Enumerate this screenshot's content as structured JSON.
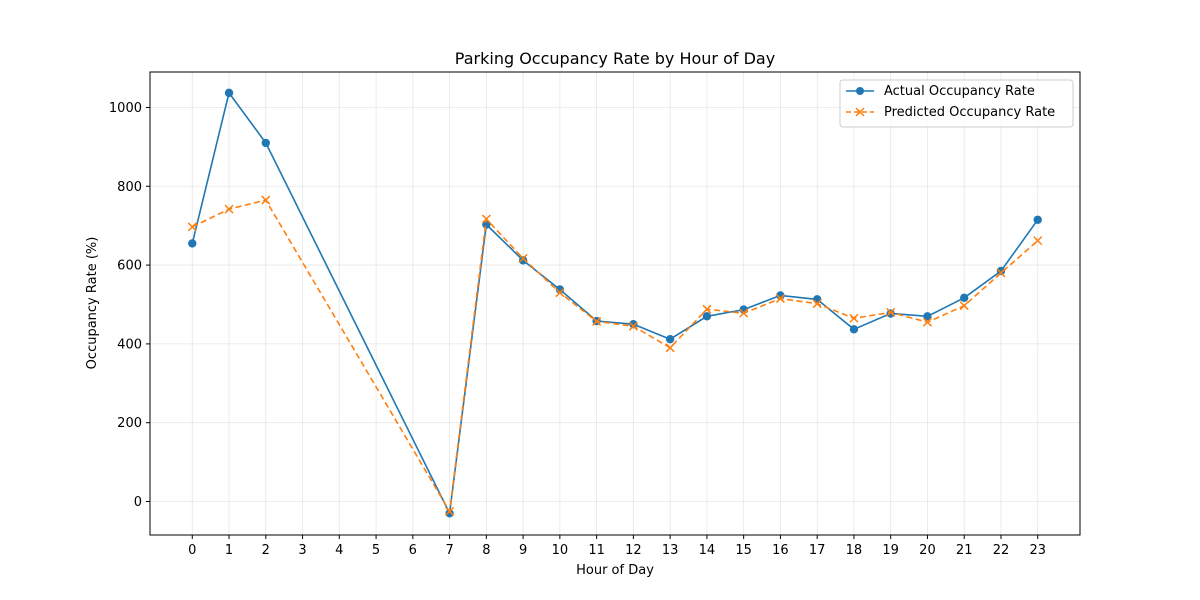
{
  "chart_data": {
    "type": "line",
    "title": "Parking Occupancy Rate by Hour of Day",
    "xlabel": "Hour of Day",
    "ylabel": "Occupancy Rate (%)",
    "x": [
      0,
      1,
      2,
      7,
      8,
      9,
      10,
      11,
      12,
      13,
      14,
      15,
      16,
      17,
      18,
      19,
      20,
      21,
      22,
      23
    ],
    "xticks": [
      "0",
      "1",
      "2",
      "3",
      "4",
      "5",
      "6",
      "7",
      "8",
      "9",
      "10",
      "11",
      "12",
      "13",
      "14",
      "15",
      "16",
      "17",
      "18",
      "19",
      "20",
      "21",
      "22",
      "23"
    ],
    "xlim": [
      -1.15,
      24.15
    ],
    "yticks": [
      "0",
      "200",
      "400",
      "600",
      "800",
      "1000"
    ],
    "ylim": [
      -85,
      1090
    ],
    "grid": true,
    "legend_position": "top-right",
    "series": [
      {
        "name": "Actual Occupancy Rate",
        "color": "#1f77b4",
        "line_style": "solid",
        "marker": "circle",
        "values": [
          655,
          1037,
          910,
          -30,
          703,
          612,
          538,
          458,
          450,
          412,
          470,
          487,
          523,
          513,
          437,
          477,
          470,
          517,
          585,
          715
        ]
      },
      {
        "name": "Predicted Occupancy Rate",
        "color": "#ff7f0e",
        "line_style": "dashed",
        "marker": "x",
        "values": [
          697,
          742,
          765,
          -25,
          717,
          617,
          530,
          457,
          445,
          390,
          488,
          478,
          515,
          502,
          465,
          480,
          455,
          497,
          580,
          662
        ]
      }
    ]
  }
}
